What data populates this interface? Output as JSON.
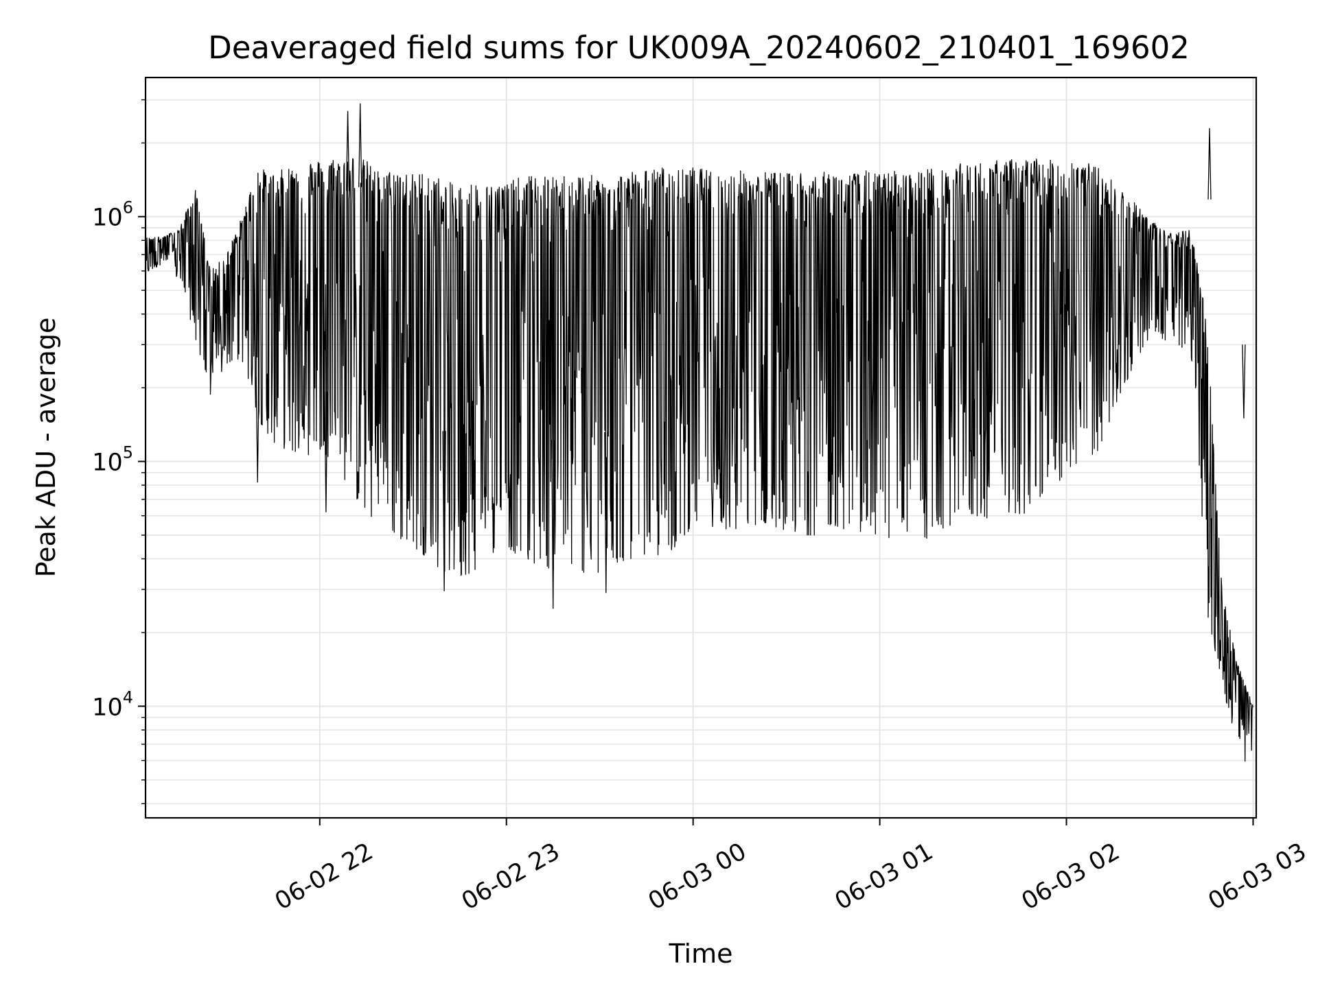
{
  "chart_data": {
    "type": "line",
    "title": "Deaveraged field sums for UK009A_20240602_210401_169602",
    "xlabel": "Time",
    "ylabel": "Peak ADU - average",
    "yscale": "log",
    "ylim": [
      3500,
      3700000
    ],
    "xlim": [
      "2024-06-02 21:04",
      "2024-06-03 03:01"
    ],
    "grid": true,
    "line_color": "#000000",
    "grid_color": "#e5e5e5",
    "x_ticks": [
      {
        "value": "2024-06-02 22:00",
        "label": "06-02 22"
      },
      {
        "value": "2024-06-02 23:00",
        "label": "06-02 23"
      },
      {
        "value": "2024-06-03 00:00",
        "label": "06-03 00"
      },
      {
        "value": "2024-06-03 01:00",
        "label": "06-03 01"
      },
      {
        "value": "2024-06-03 02:00",
        "label": "06-03 02"
      },
      {
        "value": "2024-06-03 03:00",
        "label": "06-03 03"
      }
    ],
    "y_ticks": [
      {
        "value": 10000,
        "base": "10",
        "exp": "4"
      },
      {
        "value": 100000,
        "base": "10",
        "exp": "5"
      },
      {
        "value": 1000000,
        "base": "10",
        "exp": "6"
      }
    ],
    "series": [
      {
        "x": [
          "2024-06-02 21:04",
          "2024-06-02 21:10",
          "2024-06-02 21:15",
          "2024-06-02 21:20",
          "2024-06-02 21:25",
          "2024-06-02 21:30",
          "2024-06-02 21:35",
          "2024-06-02 21:40",
          "2024-06-02 21:45",
          "2024-06-02 21:50",
          "2024-06-02 21:55",
          "2024-06-02 22:00",
          "2024-06-02 22:05",
          "2024-06-02 22:10",
          "2024-06-02 22:15",
          "2024-06-02 22:20",
          "2024-06-02 22:25",
          "2024-06-02 22:30",
          "2024-06-02 22:35",
          "2024-06-02 22:40",
          "2024-06-02 22:45",
          "2024-06-02 22:50",
          "2024-06-02 22:55",
          "2024-06-02 23:00",
          "2024-06-02 23:05",
          "2024-06-02 23:10",
          "2024-06-02 23:15",
          "2024-06-02 23:20",
          "2024-06-02 23:25",
          "2024-06-02 23:30",
          "2024-06-02 23:35",
          "2024-06-02 23:40",
          "2024-06-02 23:45",
          "2024-06-02 23:50",
          "2024-06-02 23:55",
          "2024-06-03 00:00",
          "2024-06-03 00:05",
          "2024-06-03 00:10",
          "2024-06-03 00:15",
          "2024-06-03 00:20",
          "2024-06-03 00:25",
          "2024-06-03 00:30",
          "2024-06-03 00:35",
          "2024-06-03 00:40",
          "2024-06-03 00:45",
          "2024-06-03 00:50",
          "2024-06-03 00:55",
          "2024-06-03 01:00",
          "2024-06-03 01:05",
          "2024-06-03 01:10",
          "2024-06-03 01:15",
          "2024-06-03 01:20",
          "2024-06-03 01:25",
          "2024-06-03 01:30",
          "2024-06-03 01:35",
          "2024-06-03 01:40",
          "2024-06-03 01:45",
          "2024-06-03 01:50",
          "2024-06-03 01:55",
          "2024-06-03 02:00",
          "2024-06-03 02:05",
          "2024-06-03 02:10",
          "2024-06-03 02:15",
          "2024-06-03 02:20",
          "2024-06-03 02:25",
          "2024-06-03 02:30",
          "2024-06-03 02:35",
          "2024-06-03 02:40",
          "2024-06-03 02:45",
          "2024-06-03 02:50",
          "2024-06-03 02:55",
          "2024-06-03 03:00"
        ],
        "low": [
          580000,
          650000,
          540000,
          320000,
          180000,
          250000,
          260000,
          150000,
          120000,
          110000,
          105000,
          110000,
          100000,
          75000,
          60000,
          55000,
          48000,
          45000,
          40000,
          35000,
          33000,
          36000,
          42000,
          45000,
          40000,
          38000,
          36000,
          38000,
          35000,
          33000,
          38000,
          40000,
          42000,
          40000,
          45000,
          55000,
          55000,
          52000,
          50000,
          55000,
          55000,
          52000,
          50000,
          50000,
          55000,
          52000,
          50000,
          50000,
          48000,
          50000,
          48000,
          52000,
          55000,
          60000,
          58000,
          62000,
          60000,
          65000,
          75000,
          90000,
          100000,
          110000,
          150000,
          220000,
          300000,
          320000,
          300000,
          280000,
          25000,
          12000,
          7000,
          5000
        ],
        "high": [
          820000,
          830000,
          900000,
          1300000,
          600000,
          700000,
          1000000,
          1600000,
          1500000,
          1600000,
          1700000,
          1700000,
          1750000,
          1800000,
          1700000,
          1500000,
          1600000,
          1500000,
          1550000,
          1400000,
          1350000,
          1400000,
          1350000,
          1400000,
          1450000,
          1500000,
          1450000,
          1500000,
          1500000,
          1450000,
          1500000,
          1550000,
          1550000,
          1600000,
          1550000,
          1600000,
          1550000,
          1500000,
          1550000,
          1500000,
          1550000,
          1500000,
          1550000,
          1500000,
          1550000,
          1500000,
          1550000,
          1500000,
          1550000,
          1500000,
          1600000,
          1550000,
          1650000,
          1650000,
          1700000,
          1700000,
          1750000,
          1750000,
          1700000,
          1750000,
          1700000,
          1600000,
          1400000,
          1200000,
          1050000,
          900000,
          850000,
          900000,
          400000,
          30000,
          15000,
          10000
        ],
        "peaks": [
          {
            "x": "2024-06-02 22:09",
            "value": 2700000
          },
          {
            "x": "2024-06-02 22:13",
            "value": 2900000
          },
          {
            "x": "2024-06-03 02:46",
            "value": 2300000
          },
          {
            "x": "2024-06-03 02:57",
            "value": 150000
          }
        ],
        "dips": [
          {
            "x": "2024-06-02 23:15",
            "value": 25000
          },
          {
            "x": "2024-06-02 23:32",
            "value": 29000
          },
          {
            "x": "2024-06-02 22:40",
            "value": 29500
          },
          {
            "x": "2024-06-02 21:40",
            "value": 82000
          },
          {
            "x": "2024-06-02 22:02",
            "value": 62000
          }
        ]
      }
    ]
  }
}
